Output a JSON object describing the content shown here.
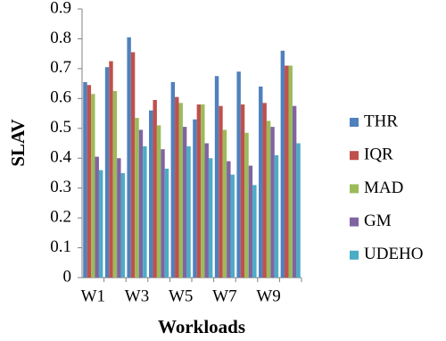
{
  "chart_data": {
    "type": "bar",
    "y_label": "SLAV",
    "x_label": "Workloads",
    "categories": [
      "W1",
      null,
      "W3",
      null,
      "W5",
      null,
      "W7",
      null,
      "W9",
      null
    ],
    "series": [
      {
        "name": "THR",
        "color": "#4f81bd",
        "values": [
          0.655,
          0.705,
          0.805,
          0.56,
          0.655,
          0.53,
          0.675,
          0.69,
          0.64,
          0.76
        ]
      },
      {
        "name": "IQR",
        "color": "#c0504d",
        "values": [
          0.645,
          0.725,
          0.755,
          0.595,
          0.605,
          0.58,
          0.575,
          0.58,
          0.585,
          0.71
        ]
      },
      {
        "name": "MAD",
        "color": "#9bbb59",
        "values": [
          0.615,
          0.625,
          0.535,
          0.51,
          0.585,
          0.58,
          0.495,
          0.485,
          0.525,
          0.71
        ]
      },
      {
        "name": "GM",
        "color": "#8064a2",
        "values": [
          0.405,
          0.4,
          0.495,
          0.43,
          0.505,
          0.45,
          0.39,
          0.375,
          0.505,
          0.575
        ]
      },
      {
        "name": "UDEHO",
        "color": "#4bacc6",
        "values": [
          0.36,
          0.35,
          0.44,
          0.365,
          0.44,
          0.4,
          0.345,
          0.31,
          0.41,
          0.45
        ]
      }
    ],
    "ylim": [
      0,
      0.9
    ],
    "yticks": [
      0,
      0.1,
      0.2,
      0.3,
      0.4,
      0.5,
      0.6,
      0.7,
      0.8,
      0.9
    ],
    "grid": false,
    "legend": "right"
  }
}
